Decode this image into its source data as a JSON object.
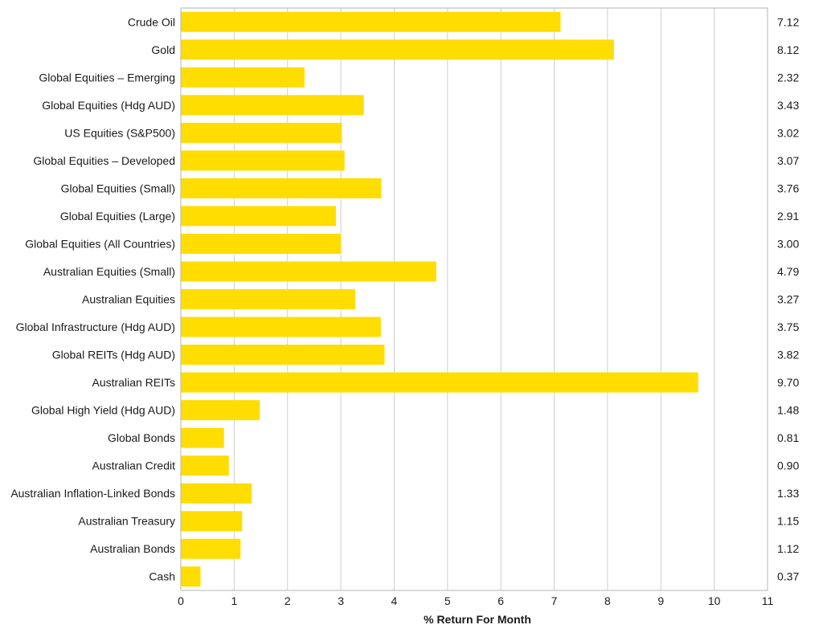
{
  "chart_data": {
    "type": "bar",
    "orientation": "horizontal",
    "title": "",
    "xlabel": "% Return For Month",
    "ylabel": "",
    "xlim": [
      0,
      11
    ],
    "xticks": [
      "0",
      "1",
      "2",
      "3",
      "4",
      "5",
      "6",
      "7",
      "8",
      "9",
      "10",
      "11"
    ],
    "grid": true,
    "bar_color": "#FFDD00",
    "categories": [
      "Crude Oil",
      "Gold",
      "Global Equities – Emerging",
      "Global Equities (Hdg AUD)",
      "US Equities (S&P500)",
      "Global Equities – Developed",
      "Global Equities (Small)",
      "Global Equities (Large)",
      "Global Equities (All Countries)",
      "Australian Equities (Small)",
      "Australian Equities",
      "Global Infrastructure (Hdg AUD)",
      "Global REITs (Hdg AUD)",
      "Australian REITs",
      "Global High Yield (Hdg AUD)",
      "Global Bonds",
      "Australian Credit",
      "Australian Inflation-Linked Bonds",
      "Australian Treasury",
      "Australian Bonds",
      "Cash"
    ],
    "values": [
      7.12,
      8.12,
      2.32,
      3.43,
      3.02,
      3.07,
      3.76,
      2.91,
      3.0,
      4.79,
      3.27,
      3.75,
      3.82,
      9.7,
      1.48,
      0.81,
      0.9,
      1.33,
      1.15,
      1.12,
      0.37
    ],
    "value_labels": [
      "7.12",
      "8.12",
      "2.32",
      "3.43",
      "3.02",
      "3.07",
      "3.76",
      "2.91",
      "3.00",
      "4.79",
      "3.27",
      "3.75",
      "3.82",
      "9.70",
      "1.48",
      "0.81",
      "0.90",
      "1.33",
      "1.15",
      "1.12",
      "0.37"
    ]
  }
}
